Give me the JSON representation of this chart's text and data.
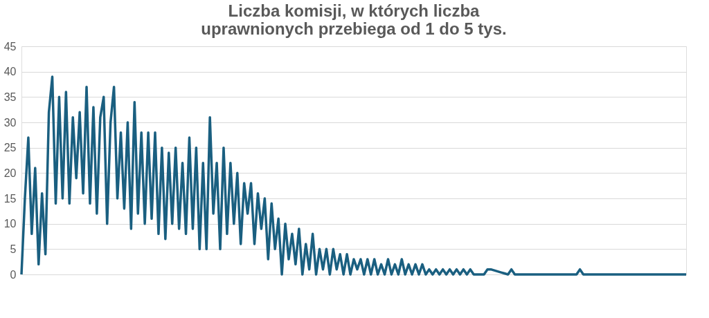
{
  "chart_data": {
    "type": "line",
    "title": "Liczba komisji, w których liczba uprawnionych przebiega od 1 do 5 tys.",
    "categories": [
      null,
      null,
      null,
      null,
      null,
      null,
      null,
      null,
      null,
      null,
      null,
      null,
      null,
      null,
      null,
      null,
      null,
      null,
      null,
      null,
      null,
      null,
      null,
      null,
      null,
      null,
      null,
      null,
      null,
      null,
      null,
      null,
      null,
      null,
      null,
      null,
      null,
      null,
      null,
      null,
      null,
      null,
      null,
      null,
      null,
      null,
      null,
      null,
      null,
      null,
      null,
      null,
      null,
      null,
      null,
      null,
      null,
      null,
      null,
      null,
      null,
      null,
      null,
      null,
      null,
      null,
      null,
      null,
      null,
      null,
      null,
      null,
      null,
      null,
      null,
      null,
      null,
      null,
      null,
      null,
      null,
      null,
      null,
      null,
      null,
      null,
      null,
      null,
      null,
      null,
      null,
      null,
      null,
      null,
      null,
      null,
      null,
      null,
      null,
      null,
      null,
      null,
      null,
      null,
      null,
      null,
      null,
      null,
      null,
      null,
      null,
      null,
      null,
      null,
      null,
      null,
      null,
      null,
      null,
      null,
      null,
      null,
      null,
      null,
      null,
      null,
      null,
      null,
      null,
      null,
      null,
      null,
      null,
      null,
      null,
      null,
      null,
      null,
      null,
      null,
      null,
      null,
      null,
      null,
      null,
      null,
      null,
      null,
      null,
      null,
      null,
      null,
      null,
      null,
      null,
      null,
      null,
      null,
      null,
      null,
      null,
      null,
      null,
      null,
      null,
      null,
      null,
      null,
      null,
      null,
      null,
      null,
      null,
      null,
      null,
      null,
      null,
      null,
      null,
      null,
      null,
      null,
      null,
      null,
      null,
      null,
      null,
      null,
      null,
      null,
      null,
      null,
      null,
      null,
      null
    ],
    "series": [
      {
        "color": "#1a5f80",
        "values": [
          0,
          15,
          27,
          8,
          21,
          2,
          16,
          4,
          32,
          39,
          14,
          35,
          15,
          36,
          14,
          31,
          19,
          32,
          16,
          37,
          14,
          33,
          12,
          31,
          35,
          10,
          30,
          37,
          15,
          28,
          13,
          30,
          9,
          34,
          12,
          28,
          10,
          28,
          11,
          28,
          8,
          25,
          7,
          24,
          10,
          25,
          9,
          22,
          8,
          27,
          9,
          25,
          5,
          22,
          5,
          31,
          12,
          22,
          5,
          25,
          8,
          22,
          10,
          20,
          6,
          18,
          12,
          18,
          6,
          16,
          9,
          15,
          3,
          14,
          5,
          11,
          0,
          10,
          3,
          8,
          2,
          9,
          0,
          6,
          1,
          8,
          0,
          5,
          1,
          5,
          0,
          5,
          1,
          4,
          0,
          4,
          0,
          3,
          1,
          3,
          0,
          3,
          0,
          3,
          0,
          2,
          0,
          3,
          0,
          2,
          0,
          3,
          0,
          2,
          0,
          2,
          0,
          2,
          0,
          1,
          0,
          1,
          0,
          1,
          0,
          1,
          0,
          1,
          0,
          1,
          0,
          1,
          0,
          0,
          0,
          0,
          1,
          1,
          0.8,
          0.6,
          0.4,
          0.2,
          0,
          1,
          0,
          0,
          0,
          0,
          0,
          0,
          0,
          0,
          0,
          0,
          0,
          0,
          0,
          0,
          0,
          0,
          0,
          0,
          0,
          1,
          0,
          0,
          0,
          0,
          0,
          0,
          0,
          0,
          0,
          0,
          0,
          0,
          0,
          0,
          0,
          0,
          0,
          0,
          0,
          0,
          0,
          0,
          0,
          0,
          0,
          0,
          0,
          0,
          0,
          0,
          0
        ]
      }
    ],
    "ylim": [
      0,
      45
    ],
    "yticks": [
      0,
      5,
      10,
      15,
      20,
      25,
      30,
      35,
      40,
      45
    ],
    "grid": "y",
    "tick_labels": "y",
    "marker": "none",
    "line_style": "solid"
  }
}
